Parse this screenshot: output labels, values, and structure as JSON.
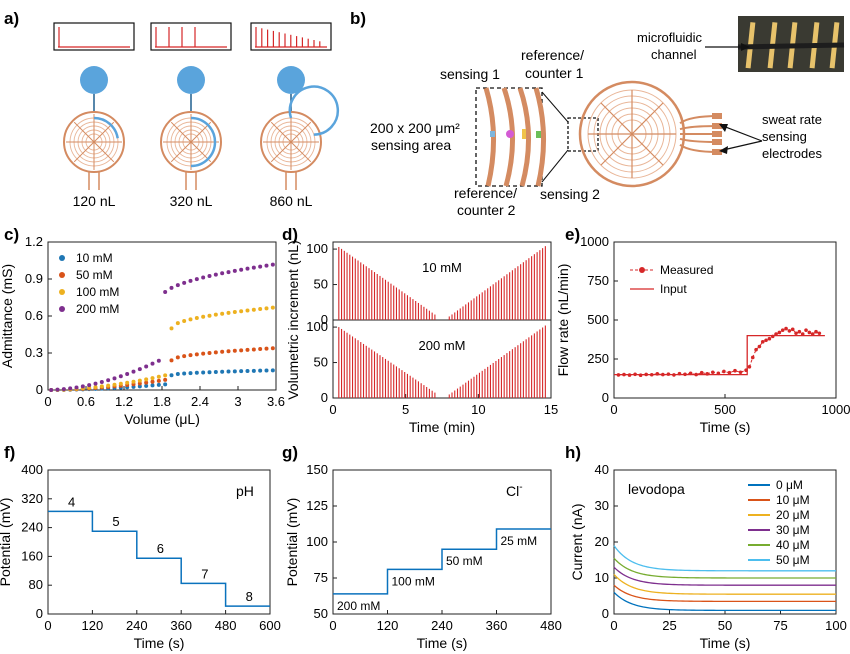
{
  "panels": [
    {
      "id": "a",
      "label": "a)",
      "volumes": [
        "120 nL",
        "320 nL",
        "860 nL"
      ],
      "pulse_counts": [
        1,
        4,
        12
      ]
    },
    {
      "id": "b",
      "label": "b)",
      "annotations": {
        "sensing1": "sensing 1",
        "ref1a": "reference/",
        "ref1b": "counter 1",
        "area_a": "200 x 200 μm²",
        "area_b": "sensing area",
        "ref2a": "reference/",
        "ref2b": "counter 2",
        "sensing2": "sensing 2",
        "mf_a": "microfluidic",
        "mf_b": "channel",
        "sr_a": "sweat rate",
        "sr_b": "sensing",
        "sr_c": "electrodes"
      }
    }
  ],
  "colors": {
    "electrode": "#d48b61",
    "blue": "#5aa4dc",
    "red": "#d62728",
    "plotblue": "#0a72bd",
    "c10": "#1f77b4",
    "c50": "#d95319",
    "c100": "#edb120",
    "c200": "#7e2f8e"
  },
  "chart_data": [
    {
      "id": "c",
      "label": "c)",
      "type": "scatter",
      "xlabel": "Volume (μL)",
      "ylabel": "Admittance (mS)",
      "xlim": [
        0,
        3.6
      ],
      "ylim": [
        0,
        1.2
      ],
      "xticks": [
        "0",
        "0.6",
        "1.2",
        "1.8",
        "2.4",
        "3",
        "3.6"
      ],
      "yticks": [
        "0",
        "0.3",
        "0.6",
        "0.9",
        "1.2"
      ],
      "legend": "top-left",
      "series": [
        {
          "name": "10 mM",
          "color": "#1f77b4",
          "step_x": 1.95,
          "pre_end": 0.05,
          "post_start": 0.12,
          "post_end": 0.16
        },
        {
          "name": "50 mM",
          "color": "#d95319",
          "step_x": 1.95,
          "pre_end": 0.09,
          "post_start": 0.24,
          "post_end": 0.34
        },
        {
          "name": "100 mM",
          "color": "#edb120",
          "step_x": 1.95,
          "pre_end": 0.13,
          "post_start": 0.5,
          "post_end": 0.67
        },
        {
          "name": "200 mM",
          "color": "#7e2f8e",
          "step_x": 1.8,
          "pre_end": 0.25,
          "post_start": 0.75,
          "post_end": 1.02
        }
      ]
    },
    {
      "id": "d",
      "label": "d)",
      "type": "bar",
      "xlabel": "Time (min)",
      "ylabel": "Volumetric increment (nL)",
      "xlim": [
        0,
        15
      ],
      "ylim": [
        0,
        100
      ],
      "xticks": [
        "0",
        "5",
        "10",
        "15"
      ],
      "yticks": [
        "0",
        "50",
        "100"
      ],
      "series": [
        {
          "name": "10 mM",
          "left_peak": 103,
          "right_peak": 107,
          "pulses_per_side": 36
        },
        {
          "name": "200 mM",
          "left_peak": 100,
          "right_peak": 105,
          "pulses_per_side": 36
        }
      ]
    },
    {
      "id": "e",
      "label": "e)",
      "type": "line",
      "xlabel": "Time (s)",
      "ylabel": "Flow rate (nL/min)",
      "xlim": [
        0,
        1000
      ],
      "ylim": [
        0,
        1000
      ],
      "xticks": [
        "0",
        "500",
        "1000"
      ],
      "yticks": [
        "0",
        "250",
        "500",
        "750",
        "1000"
      ],
      "legend": "top-left",
      "series": [
        {
          "name": "Measured",
          "x": [
            20,
            45,
            70,
            95,
            120,
            145,
            170,
            195,
            220,
            245,
            270,
            295,
            320,
            345,
            370,
            395,
            420,
            445,
            470,
            495,
            520,
            545,
            570,
            595,
            610,
            625,
            640,
            655,
            670,
            685,
            700,
            715,
            730,
            745,
            760,
            775,
            790,
            805,
            820,
            835,
            850,
            865,
            880,
            895,
            910,
            925
          ],
          "y": [
            148,
            150,
            147,
            152,
            146,
            151,
            149,
            155,
            150,
            153,
            148,
            156,
            152,
            158,
            150,
            162,
            155,
            165,
            158,
            170,
            162,
            175,
            165,
            178,
            200,
            260,
            310,
            330,
            360,
            370,
            380,
            395,
            410,
            420,
            435,
            445,
            430,
            440,
            415,
            425,
            410,
            435,
            420,
            410,
            425,
            415
          ]
        },
        {
          "name": "Input",
          "x": [
            0,
            600,
            600,
            950
          ],
          "y": [
            150,
            150,
            400,
            400
          ]
        }
      ]
    },
    {
      "id": "f",
      "label": "f)",
      "type": "line",
      "xlabel": "Time (s)",
      "ylabel": "Potential (mV)",
      "xlim": [
        0,
        600
      ],
      "ylim": [
        0,
        400
      ],
      "xticks": [
        "0",
        "120",
        "240",
        "360",
        "480",
        "600"
      ],
      "yticks": [
        "0",
        "80",
        "160",
        "240",
        "320",
        "400"
      ],
      "annotation": "pH",
      "steps": [
        {
          "label": "4",
          "x0": 0,
          "x1": 120,
          "y": 285
        },
        {
          "label": "5",
          "x0": 120,
          "x1": 240,
          "y": 230
        },
        {
          "label": "6",
          "x0": 240,
          "x1": 360,
          "y": 155
        },
        {
          "label": "7",
          "x0": 360,
          "x1": 480,
          "y": 85
        },
        {
          "label": "8",
          "x0": 480,
          "x1": 600,
          "y": 22
        }
      ]
    },
    {
      "id": "g",
      "label": "g)",
      "type": "line",
      "xlabel": "Time (s)",
      "ylabel": "Potential (mV)",
      "xlim": [
        0,
        480
      ],
      "ylim": [
        50,
        150
      ],
      "xticks": [
        "0",
        "120",
        "240",
        "360",
        "480"
      ],
      "yticks": [
        "50",
        "75",
        "100",
        "125",
        "150"
      ],
      "annotation_main": "Cl",
      "annotation_sup": "-",
      "steps": [
        {
          "label": "200 mM",
          "x0": 0,
          "x1": 120,
          "y": 64
        },
        {
          "label": "100 mM",
          "x0": 120,
          "x1": 240,
          "y": 81
        },
        {
          "label": "50 mM",
          "x0": 240,
          "x1": 360,
          "y": 95
        },
        {
          "label": "25 mM",
          "x0": 360,
          "x1": 480,
          "y": 109
        }
      ]
    },
    {
      "id": "h",
      "label": "h)",
      "type": "line",
      "xlabel": "Time (s)",
      "ylabel": "Current (nA)",
      "xlim": [
        0,
        100
      ],
      "ylim": [
        0,
        40
      ],
      "xticks": [
        "0",
        "25",
        "50",
        "75",
        "100"
      ],
      "yticks": [
        "0",
        "10",
        "20",
        "30",
        "40"
      ],
      "annotation": "levodopa",
      "legend": "top-right",
      "series": [
        {
          "name": "0 μM",
          "color": "#0072bd",
          "start": 6,
          "end": 1
        },
        {
          "name": "10 μM",
          "color": "#d95319",
          "start": 8,
          "end": 3.5
        },
        {
          "name": "20 μM",
          "color": "#edb120",
          "start": 11,
          "end": 5.5
        },
        {
          "name": "30 μM",
          "color": "#7e2f8e",
          "start": 13,
          "end": 8
        },
        {
          "name": "40 μM",
          "color": "#77ac30",
          "start": 15.5,
          "end": 10
        },
        {
          "name": "50 μM",
          "color": "#4dbeee",
          "start": 19,
          "end": 12
        }
      ]
    }
  ]
}
